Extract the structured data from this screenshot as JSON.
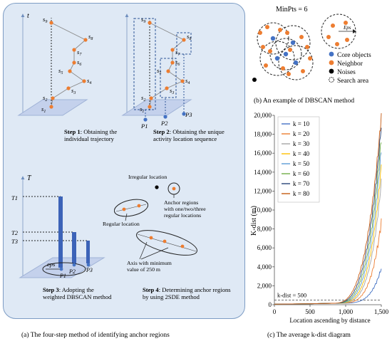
{
  "panel_a": {
    "caption": "(a) The four-step method of identifying anchor regions",
    "steps": [
      {
        "bold": "Step 1",
        "text": ": Obtaining the individual trajectory"
      },
      {
        "bold": "Step 2",
        "text": ": Obtaining the unique activity location sequence"
      },
      {
        "bold": "Step 3",
        "text": ": Adopting the weighted DBSCAN method"
      },
      {
        "bold": "Step 4",
        "text": ": Determining anchor regions by using 2SDE method"
      }
    ],
    "axis_t": "t",
    "axis_T": "T",
    "trajectory_labels": [
      "s9",
      "s8",
      "s7",
      "s6",
      "s5",
      "s4",
      "s3",
      "s2",
      "s1"
    ],
    "location_labels": [
      "P1",
      "P2",
      "P3"
    ],
    "time_labels": [
      "T1",
      "T2",
      "T3"
    ],
    "eps_label": "eps",
    "irregular_label": "Irregular location",
    "regular_label": "Regular location",
    "anchor_label": "Anchor regions with one/two/three regular locations",
    "axis_label": "Axis with minimum value of 250 m"
  },
  "panel_b": {
    "caption": "(b) An example of DBSCAN method",
    "minpts": "MinPts = 6",
    "eps": "Eps",
    "legend": [
      {
        "label": "Core objects",
        "color": "#4472c4"
      },
      {
        "label": "Neighbor",
        "color": "#ed7d31"
      },
      {
        "label": "Noises",
        "color": "#000000"
      },
      {
        "label": "Search area",
        "color": "#ffffff"
      }
    ]
  },
  "panel_c": {
    "caption": "(c) The average k-dist diagram",
    "chart_data": {
      "type": "line",
      "xlabel": "Location ascending by distance",
      "ylabel": "K-dist (m)",
      "xlim": [
        0,
        1500
      ],
      "ylim": [
        0,
        20000
      ],
      "x_ticks": [
        "0",
        "500",
        "1,000",
        "1,500"
      ],
      "y_ticks": [
        "0",
        "2,000",
        "4,000",
        "6,000",
        "8,000",
        "10,000",
        "12,000",
        "14,000",
        "16,000",
        "18,000",
        "20,000"
      ],
      "reference_line": {
        "label": "k-dist = 500",
        "y": 500
      },
      "series": [
        {
          "name": "k = 10",
          "color": "#4472c4",
          "end": 3700
        },
        {
          "name": "k = 20",
          "color": "#ed7d31",
          "end": 8600
        },
        {
          "name": "k = 30",
          "color": "#a5a5a5",
          "end": 12800
        },
        {
          "name": "k = 40",
          "color": "#ffc000",
          "end": 14500
        },
        {
          "name": "k = 50",
          "color": "#5b9bd5",
          "end": 16200
        },
        {
          "name": "k = 60",
          "color": "#70ad47",
          "end": 17500
        },
        {
          "name": "k = 70",
          "color": "#264478",
          "end": 18800
        },
        {
          "name": "k = 80",
          "color": "#c55a11",
          "end": 19800
        }
      ]
    }
  }
}
